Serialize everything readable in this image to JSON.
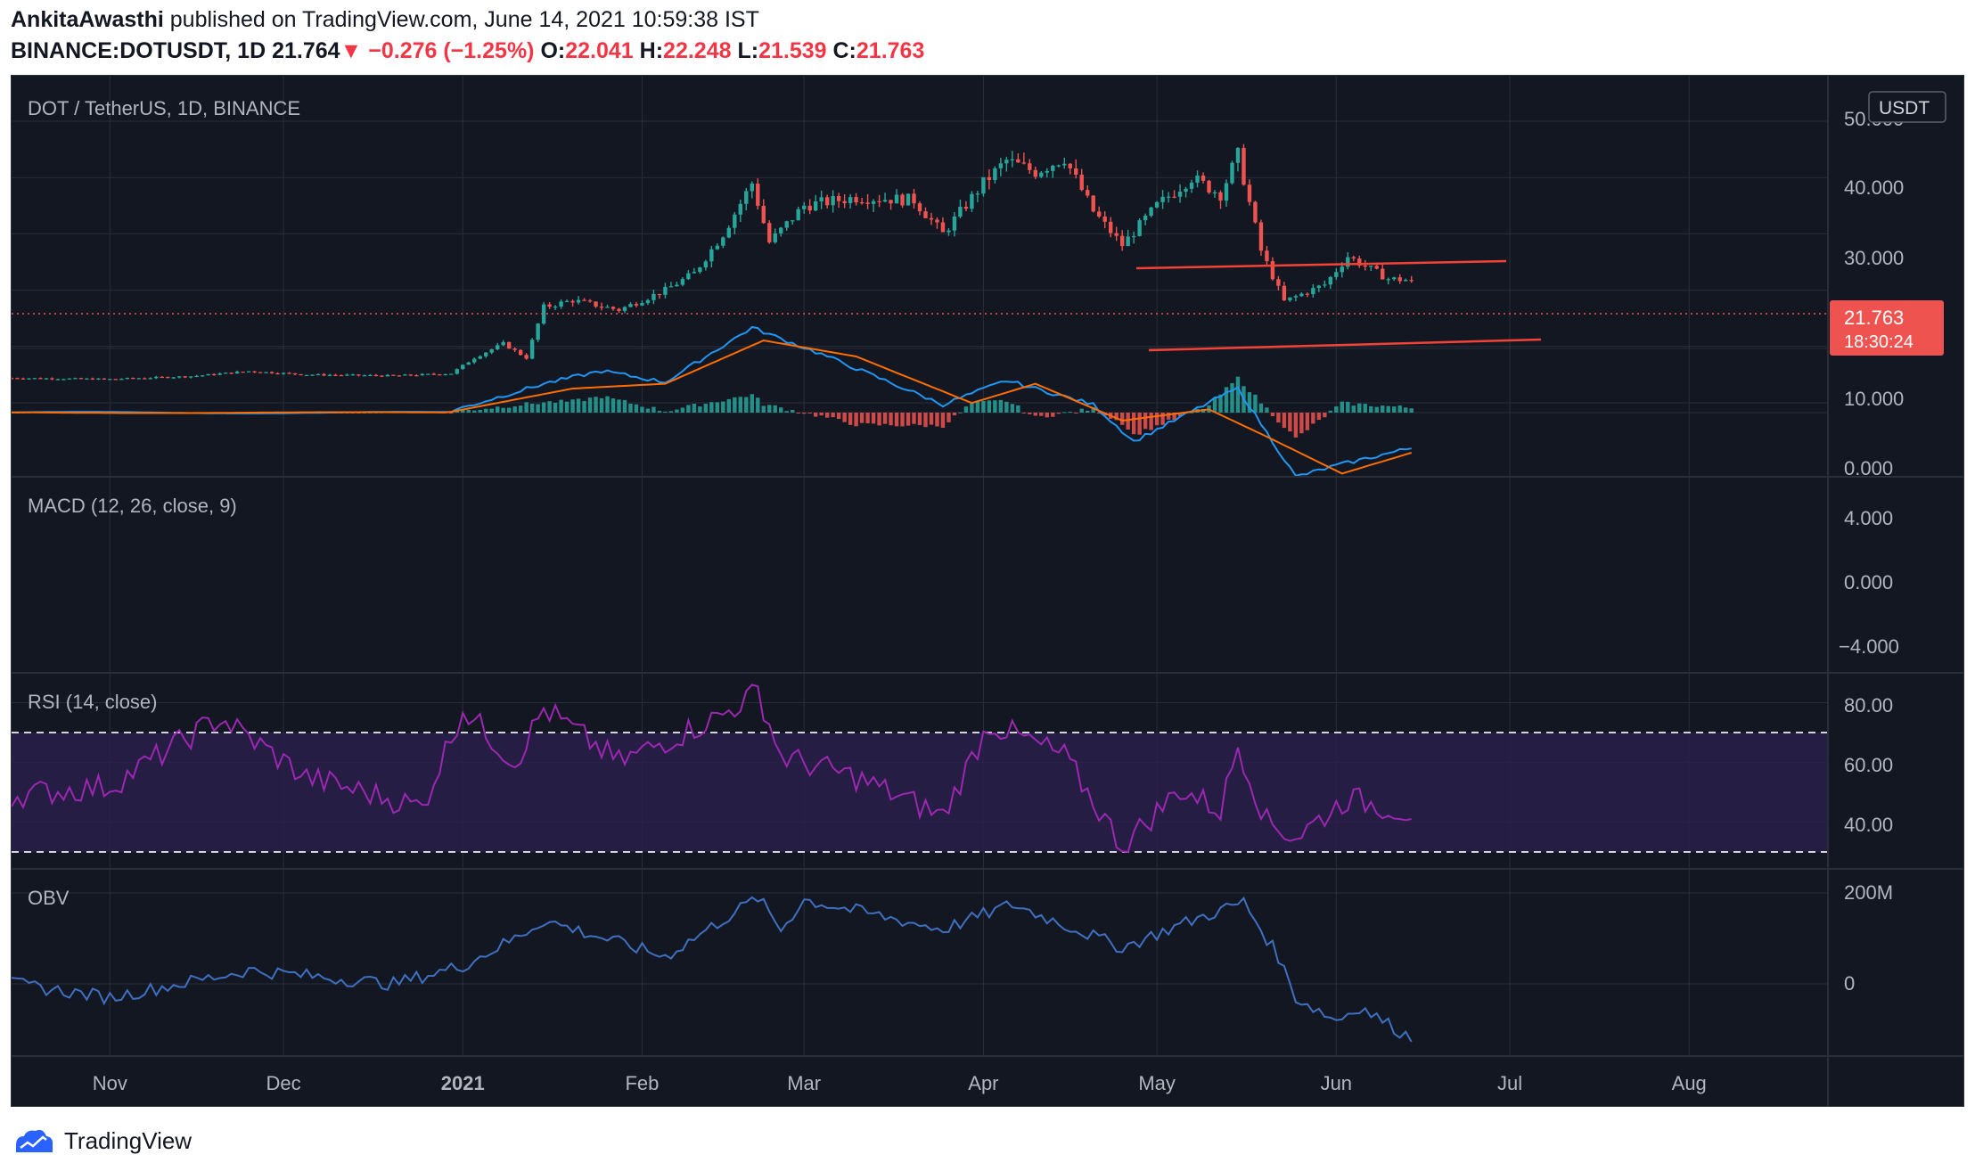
{
  "header": {
    "author": "AnkitaAwasthi",
    "published_text": "published on TradingView.com, June 14, 2021 10:59:38 IST",
    "symbol": "BINANCE:DOTUSDT, 1D",
    "price": "21.764",
    "change": "−0.276 (−1.25%)",
    "open_label": "O:",
    "open": "22.041",
    "high_label": "H:",
    "high": "22.248",
    "low_label": "L:",
    "low": "21.539",
    "close_label": "C:",
    "close": "21.763"
  },
  "panes": {
    "price": {
      "title": "DOT / TetherUS, 1D, BINANCE",
      "currency_button": "USDT",
      "axis_labels": [
        "50.000",
        "40.000",
        "30.000",
        "20.000",
        "10.000",
        "0.000"
      ],
      "last_price": "21.763",
      "countdown": "18:30:24"
    },
    "macd": {
      "title": "MACD (12, 26, close, 9)",
      "axis_labels": [
        "4.000",
        "0.000",
        "−4.000"
      ]
    },
    "rsi": {
      "title": "RSI (14, close)",
      "axis_labels": [
        "80.00",
        "60.00",
        "40.00"
      ]
    },
    "obv": {
      "title": "OBV",
      "axis_labels": [
        "200M",
        "0"
      ]
    }
  },
  "time_axis": [
    "Nov",
    "Dec",
    "2021",
    "Feb",
    "Mar",
    "Apr",
    "May",
    "Jun",
    "Jul",
    "Aug"
  ],
  "footer": {
    "brand": "TradingView",
    "logo_icon": "tradingview-logo-icon"
  },
  "colors": {
    "background": "#131722",
    "grid": "#2a2e39",
    "axis_text": "#b2b5be",
    "up": "#26a69a",
    "down": "#ef5350",
    "macd_line": "#2196f3",
    "signal_line": "#ff6d00",
    "rsi_line": "#9c27b0",
    "rsi_band": "#2a1f4a",
    "obv_line": "#3f6fc0",
    "trendline": "#f44336"
  },
  "chart_data": [
    {
      "type": "candlestick",
      "title": "DOT / TetherUS, 1D, BINANCE",
      "ylim": [
        0,
        50
      ],
      "x_range": [
        "2020-10-15",
        "2021-08-25"
      ],
      "last_close": 21.763,
      "weekly_close_anchors": [
        [
          "2020-10-15",
          4.4
        ],
        [
          "2020-11-01",
          4.2
        ],
        [
          "2020-11-15",
          4.7
        ],
        [
          "2020-11-25",
          5.6
        ],
        [
          "2020-12-05",
          5.0
        ],
        [
          "2020-12-20",
          4.8
        ],
        [
          "2020-12-30",
          5.2
        ],
        [
          "2021-01-03",
          8.0
        ],
        [
          "2021-01-08",
          10.5
        ],
        [
          "2021-01-12",
          8.0
        ],
        [
          "2021-01-15",
          17.0
        ],
        [
          "2021-01-20",
          18.2
        ],
        [
          "2021-01-28",
          16.5
        ],
        [
          "2021-02-05",
          20.0
        ],
        [
          "2021-02-10",
          23.0
        ],
        [
          "2021-02-15",
          30.0
        ],
        [
          "2021-02-20",
          39.0
        ],
        [
          "2021-02-23",
          28.5
        ],
        [
          "2021-03-01",
          35.0
        ],
        [
          "2021-03-10",
          36.5
        ],
        [
          "2021-03-20",
          36.0
        ],
        [
          "2021-03-25",
          30.0
        ],
        [
          "2021-04-01",
          39.0
        ],
        [
          "2021-04-05",
          43.0
        ],
        [
          "2021-04-10",
          41.0
        ],
        [
          "2021-04-15",
          43.5
        ],
        [
          "2021-04-20",
          34.0
        ],
        [
          "2021-04-25",
          28.0
        ],
        [
          "2021-05-01",
          35.0
        ],
        [
          "2021-05-07",
          40.0
        ],
        [
          "2021-05-12",
          37.0
        ],
        [
          "2021-05-15",
          44.0
        ],
        [
          "2021-05-19",
          27.0
        ],
        [
          "2021-05-23",
          18.0
        ],
        [
          "2021-05-30",
          21.0
        ],
        [
          "2021-06-03",
          26.0
        ],
        [
          "2021-06-10",
          22.0
        ],
        [
          "2021-06-14",
          21.763
        ]
      ]
    },
    {
      "type": "line",
      "title": "MACD (12, 26, close, 9)",
      "ylim": [
        -6,
        6
      ],
      "series": [
        {
          "name": "MACD",
          "points": [
            [
              "2020-12-30",
              0.1
            ],
            [
              "2021-01-15",
              1.8
            ],
            [
              "2021-01-25",
              2.6
            ],
            [
              "2021-02-05",
              1.9
            ],
            [
              "2021-02-20",
              5.3
            ],
            [
              "2021-03-05",
              3.5
            ],
            [
              "2021-03-25",
              0.5
            ],
            [
              "2021-04-05",
              2.0
            ],
            [
              "2021-04-20",
              0.5
            ],
            [
              "2021-04-27",
              -1.8
            ],
            [
              "2021-05-12",
              1.0
            ],
            [
              "2021-05-15",
              1.5
            ],
            [
              "2021-05-25",
              -4.0
            ],
            [
              "2021-06-01",
              -3.3
            ],
            [
              "2021-06-14",
              -2.2
            ]
          ]
        },
        {
          "name": "Signal",
          "points": [
            [
              "2020-12-30",
              0.05
            ],
            [
              "2021-01-20",
              1.5
            ],
            [
              "2021-02-05",
              1.8
            ],
            [
              "2021-02-22",
              4.5
            ],
            [
              "2021-03-10",
              3.5
            ],
            [
              "2021-03-30",
              0.6
            ],
            [
              "2021-04-10",
              1.8
            ],
            [
              "2021-04-25",
              -0.5
            ],
            [
              "2021-05-10",
              0.2
            ],
            [
              "2021-05-20",
              -1.5
            ],
            [
              "2021-06-02",
              -3.8
            ],
            [
              "2021-06-14",
              -2.5
            ]
          ]
        }
      ]
    },
    {
      "type": "line",
      "title": "RSI (14, close)",
      "ylim": [
        25,
        90
      ],
      "bands": [
        30,
        70
      ],
      "series": [
        {
          "name": "RSI",
          "points": [
            [
              "2020-10-15",
              49
            ],
            [
              "2020-11-01",
              52
            ],
            [
              "2020-11-20",
              75
            ],
            [
              "2020-12-05",
              55
            ],
            [
              "2020-12-25",
              45
            ],
            [
              "2021-01-01",
              78
            ],
            [
              "2021-01-10",
              60
            ],
            [
              "2021-01-15",
              78
            ],
            [
              "2021-01-28",
              60
            ],
            [
              "2021-02-15",
              76
            ],
            [
              "2021-02-21",
              84
            ],
            [
              "2021-02-25",
              62
            ],
            [
              "2021-03-10",
              55
            ],
            [
              "2021-03-25",
              42
            ],
            [
              "2021-04-02",
              73
            ],
            [
              "2021-04-15",
              62
            ],
            [
              "2021-04-25",
              32
            ],
            [
              "2021-05-05",
              51
            ],
            [
              "2021-05-12",
              44
            ],
            [
              "2021-05-15",
              66
            ],
            [
              "2021-05-20",
              40
            ],
            [
              "2021-05-25",
              35
            ],
            [
              "2021-06-03",
              48
            ],
            [
              "2021-06-14",
              43
            ]
          ]
        }
      ]
    },
    {
      "type": "line",
      "title": "OBV",
      "ylim": [
        -200,
        260
      ],
      "series": [
        {
          "name": "OBV",
          "points": [
            [
              "2020-10-15",
              0
            ],
            [
              "2020-11-01",
              -30
            ],
            [
              "2020-11-25",
              30
            ],
            [
              "2020-12-20",
              0
            ],
            [
              "2021-01-01",
              40
            ],
            [
              "2021-01-10",
              100
            ],
            [
              "2021-01-15",
              140
            ],
            [
              "2021-02-05",
              60
            ],
            [
              "2021-02-21",
              190
            ],
            [
              "2021-02-25",
              120
            ],
            [
              "2021-03-01",
              185
            ],
            [
              "2021-03-25",
              120
            ],
            [
              "2021-04-06",
              175
            ],
            [
              "2021-04-25",
              80
            ],
            [
              "2021-05-05",
              130
            ],
            [
              "2021-05-16",
              180
            ],
            [
              "2021-05-22",
              60
            ],
            [
              "2021-05-25",
              -30
            ],
            [
              "2021-06-01",
              -80
            ],
            [
              "2021-06-05",
              -50
            ],
            [
              "2021-06-14",
              -120
            ]
          ]
        }
      ]
    }
  ]
}
